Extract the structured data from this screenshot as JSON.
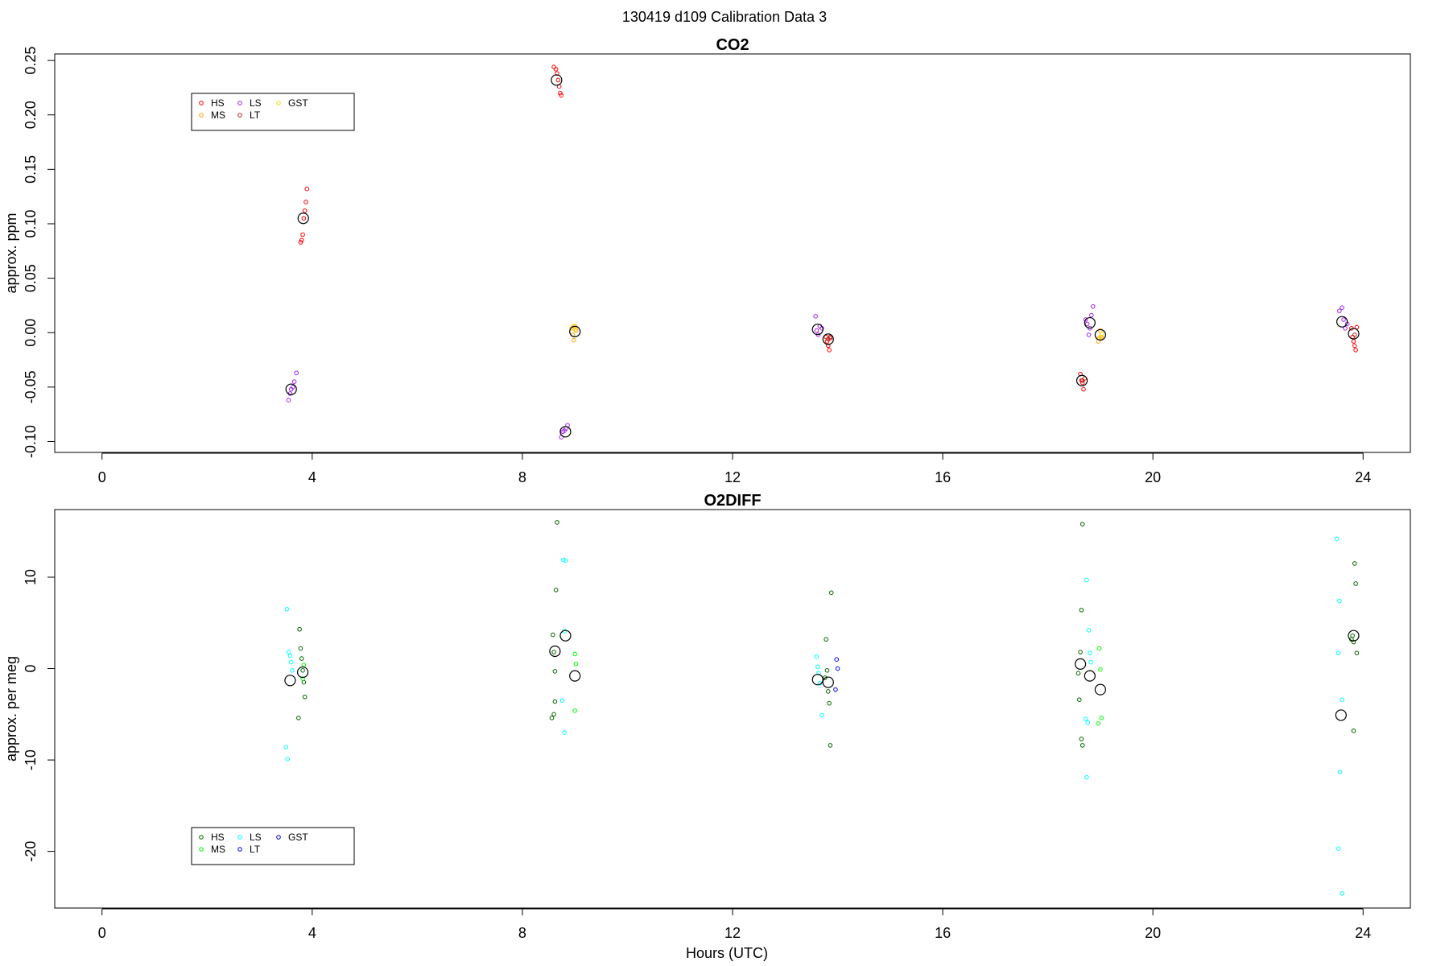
{
  "figure": {
    "title": "130419   d109   Calibration Data 3",
    "xlabel": "Hours (UTC)"
  },
  "chart_data": [
    {
      "type": "scatter",
      "title": "CO2",
      "ylabel": "approx. ppm",
      "xlim": [
        -0.9,
        24.9
      ],
      "ylim": [
        -0.11,
        0.256
      ],
      "xticks": [
        0,
        4,
        8,
        12,
        16,
        20,
        24
      ],
      "yticks": [
        -0.1,
        -0.05,
        0.0,
        0.05,
        0.1,
        0.15,
        0.2,
        0.25
      ],
      "ytick_labels": [
        "-0.10",
        "-0.05",
        "0.00",
        "0.05",
        "0.10",
        "0.15",
        "0.20",
        "0.25"
      ],
      "legend_position": "top-left",
      "legend_items": [
        {
          "label": "HS",
          "color": "#ff0000"
        },
        {
          "label": "MS",
          "color": "#ffa500"
        },
        {
          "label": "LS",
          "color": "#a020f0"
        },
        {
          "label": "LT",
          "color": "#b22222"
        },
        {
          "label": "GST",
          "color": "#ffd700"
        }
      ],
      "series": [
        {
          "name": "HS",
          "color": "#ff0000",
          "points": [
            [
              3.78,
              0.083
            ],
            [
              3.8,
              0.085
            ],
            [
              3.82,
              0.09
            ],
            [
              3.84,
              0.105
            ],
            [
              3.86,
              0.112
            ],
            [
              3.88,
              0.12
            ],
            [
              3.9,
              0.132
            ],
            [
              8.6,
              0.244
            ],
            [
              8.64,
              0.242
            ],
            [
              8.66,
              0.238
            ],
            [
              8.68,
              0.232
            ],
            [
              8.7,
              0.226
            ],
            [
              8.72,
              0.22
            ],
            [
              8.74,
              0.218
            ],
            [
              13.78,
              -0.004
            ],
            [
              13.8,
              -0.008
            ],
            [
              13.82,
              -0.012
            ],
            [
              13.84,
              -0.016
            ],
            [
              13.86,
              -0.005
            ],
            [
              18.62,
              -0.038
            ],
            [
              18.64,
              -0.044
            ],
            [
              18.66,
              -0.046
            ],
            [
              18.68,
              -0.052
            ],
            [
              18.7,
              -0.042
            ],
            [
              23.78,
              0.004
            ],
            [
              23.8,
              -0.004
            ],
            [
              23.82,
              -0.008
            ],
            [
              23.84,
              -0.012
            ],
            [
              23.86,
              -0.016
            ],
            [
              23.88,
              0.005
            ]
          ]
        },
        {
          "name": "MS",
          "color": "#ffa500",
          "points": [
            [
              8.94,
              0.004
            ],
            [
              8.96,
              -0.002
            ],
            [
              8.98,
              -0.007
            ],
            [
              9.0,
              0.006
            ],
            [
              9.02,
              0.002
            ],
            [
              18.96,
              -0.008
            ],
            [
              18.98,
              -0.005
            ],
            [
              19.0,
              0.002
            ],
            [
              19.02,
              -0.004
            ]
          ]
        },
        {
          "name": "LS",
          "color": "#a020f0",
          "points": [
            [
              3.55,
              -0.062
            ],
            [
              3.58,
              -0.056
            ],
            [
              3.6,
              -0.052
            ],
            [
              3.63,
              -0.05
            ],
            [
              3.66,
              -0.045
            ],
            [
              3.7,
              -0.037
            ],
            [
              8.74,
              -0.096
            ],
            [
              8.77,
              -0.091
            ],
            [
              8.8,
              -0.09
            ],
            [
              8.83,
              -0.088
            ],
            [
              8.86,
              -0.085
            ],
            [
              13.58,
              0.015
            ],
            [
              13.6,
              0.002
            ],
            [
              13.63,
              -0.002
            ],
            [
              13.66,
              0.006
            ],
            [
              13.7,
              0.004
            ],
            [
              18.72,
              0.012
            ],
            [
              18.75,
              0.008
            ],
            [
              18.78,
              -0.002
            ],
            [
              18.8,
              0.004
            ],
            [
              18.83,
              0.016
            ],
            [
              18.86,
              0.024
            ],
            [
              23.55,
              0.02
            ],
            [
              23.6,
              0.023
            ],
            [
              23.63,
              0.012
            ],
            [
              23.66,
              0.004
            ],
            [
              23.7,
              0.008
            ]
          ]
        },
        {
          "name": "LT",
          "color": "#b22222",
          "points": [
            [
              13.82,
              -0.006
            ],
            [
              13.86,
              -0.004
            ],
            [
              18.66,
              -0.044
            ],
            [
              23.84,
              -0.002
            ]
          ]
        },
        {
          "name": "GST",
          "color": "#ffd700",
          "points": [
            [
              8.97,
              0.006
            ],
            [
              9.0,
              0.003
            ],
            [
              19.0,
              -0.004
            ],
            [
              19.03,
              -0.001
            ]
          ]
        }
      ],
      "means": [
        [
          3.83,
          0.105
        ],
        [
          3.6,
          -0.052
        ],
        [
          8.65,
          0.232
        ],
        [
          9.0,
          0.001
        ],
        [
          8.82,
          -0.091
        ],
        [
          13.62,
          0.003
        ],
        [
          13.82,
          -0.006
        ],
        [
          18.65,
          -0.044
        ],
        [
          18.8,
          0.009
        ],
        [
          19.0,
          -0.002
        ],
        [
          23.6,
          0.01
        ],
        [
          23.82,
          -0.001
        ]
      ]
    },
    {
      "type": "scatter",
      "title": "O2DIFF",
      "ylabel": "approx. per meg",
      "xlim": [
        -0.9,
        24.9
      ],
      "ylim": [
        -26.2,
        17.4
      ],
      "xticks": [
        0,
        4,
        8,
        12,
        16,
        20,
        24
      ],
      "yticks": [
        -20,
        -10,
        0,
        10
      ],
      "ytick_labels": [
        "-20",
        "-10",
        "0",
        "10"
      ],
      "legend_position": "bottom-left",
      "legend_items": [
        {
          "label": "HS",
          "color": "#006400"
        },
        {
          "label": "MS",
          "color": "#00ff00"
        },
        {
          "label": "LS",
          "color": "#00ffff"
        },
        {
          "label": "LT",
          "color": "#0000ff"
        },
        {
          "label": "GST",
          "color": "#0000cd"
        }
      ],
      "series": [
        {
          "name": "HS",
          "color": "#006400",
          "points": [
            [
              3.76,
              4.3
            ],
            [
              3.78,
              2.2
            ],
            [
              3.8,
              1.1
            ],
            [
              3.82,
              -0.2
            ],
            [
              3.84,
              -1.5
            ],
            [
              3.86,
              -3.1
            ],
            [
              3.74,
              -5.4
            ],
            [
              8.58,
              3.7
            ],
            [
              8.6,
              1.8
            ],
            [
              8.62,
              -0.3
            ],
            [
              8.64,
              8.6
            ],
            [
              8.66,
              16.0
            ],
            [
              8.56,
              -5.4
            ],
            [
              8.6,
              -5.0
            ],
            [
              8.62,
              -3.6
            ],
            [
              13.78,
              3.2
            ],
            [
              13.8,
              -0.2
            ],
            [
              13.82,
              -2.5
            ],
            [
              13.84,
              -3.8
            ],
            [
              13.86,
              -8.4
            ],
            [
              13.88,
              8.3
            ],
            [
              13.76,
              -1.0
            ],
            [
              18.62,
              1.8
            ],
            [
              18.64,
              6.4
            ],
            [
              18.66,
              15.8
            ],
            [
              18.6,
              -3.4
            ],
            [
              18.64,
              -7.7
            ],
            [
              18.66,
              -8.4
            ],
            [
              18.58,
              -0.5
            ],
            [
              23.78,
              3.2
            ],
            [
              23.8,
              3.6
            ],
            [
              23.82,
              2.9
            ],
            [
              23.84,
              11.5
            ],
            [
              23.86,
              9.3
            ],
            [
              23.88,
              1.7
            ],
            [
              23.82,
              -6.8
            ]
          ]
        },
        {
          "name": "MS",
          "color": "#00ff00",
          "points": [
            [
              3.82,
              -1.1
            ],
            [
              3.84,
              0.4
            ],
            [
              9.0,
              1.6
            ],
            [
              9.02,
              0.5
            ],
            [
              9.0,
              -4.6
            ],
            [
              18.98,
              2.2
            ],
            [
              19.0,
              -0.1
            ],
            [
              19.02,
              -5.4
            ],
            [
              18.96,
              -6.0
            ]
          ]
        },
        {
          "name": "LS",
          "color": "#00ffff",
          "points": [
            [
              3.52,
              6.5
            ],
            [
              3.55,
              1.8
            ],
            [
              3.58,
              1.4
            ],
            [
              3.6,
              0.7
            ],
            [
              3.62,
              -0.2
            ],
            [
              3.5,
              -8.6
            ],
            [
              3.53,
              -9.9
            ],
            [
              8.78,
              11.9
            ],
            [
              8.82,
              11.8
            ],
            [
              8.8,
              4.1
            ],
            [
              8.76,
              -3.5
            ],
            [
              8.8,
              -7.0
            ],
            [
              13.6,
              1.3
            ],
            [
              13.62,
              0.2
            ],
            [
              13.66,
              -1.6
            ],
            [
              13.7,
              -5.1
            ],
            [
              13.64,
              -0.5
            ],
            [
              18.74,
              9.7
            ],
            [
              18.78,
              4.2
            ],
            [
              18.8,
              1.7
            ],
            [
              18.82,
              0.7
            ],
            [
              18.72,
              -5.5
            ],
            [
              18.76,
              -5.9
            ],
            [
              18.74,
              -11.9
            ],
            [
              23.5,
              14.2
            ],
            [
              23.55,
              7.4
            ],
            [
              23.53,
              1.7
            ],
            [
              23.6,
              -3.4
            ],
            [
              23.56,
              -11.3
            ],
            [
              23.53,
              -19.7
            ],
            [
              23.6,
              -24.6
            ]
          ]
        },
        {
          "name": "LT",
          "color": "#0000ff",
          "points": [
            [
              13.98,
              1.0
            ],
            [
              14.0,
              0.0
            ],
            [
              13.96,
              -2.3
            ]
          ]
        },
        {
          "name": "GST",
          "color": "#0000cd",
          "points": []
        }
      ],
      "means": [
        [
          3.58,
          -1.3
        ],
        [
          3.82,
          -0.4
        ],
        [
          8.62,
          1.9
        ],
        [
          8.82,
          3.6
        ],
        [
          9.0,
          -0.8
        ],
        [
          13.62,
          -1.2
        ],
        [
          13.82,
          -1.5
        ],
        [
          18.62,
          0.5
        ],
        [
          18.8,
          -0.8
        ],
        [
          19.0,
          -2.3
        ],
        [
          23.58,
          -5.1
        ],
        [
          23.82,
          3.6
        ]
      ]
    }
  ]
}
